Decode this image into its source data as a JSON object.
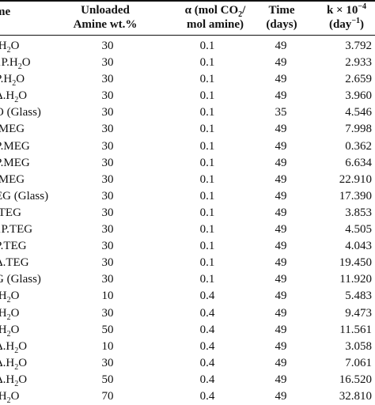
{
  "table": {
    "headers": {
      "name": "me",
      "amine_line1": "Unloaded",
      "amine_line2": "Amine wt.%",
      "alpha_line1": "α (mol CO",
      "alpha_sub": "2",
      "alpha_line1_end": "/",
      "alpha_line2": "mol amine)",
      "time_line1": "Time",
      "time_line2": "(days)",
      "k_line1": "k × 10",
      "k_sup": "−4",
      "k_line2_start": "(day",
      "k_line2_sup": "−1",
      "k_line2_end": ")"
    },
    "rows": [
      {
        "name": ".H",
        "sub": "2",
        "tail": "O",
        "amine": "30",
        "alpha": "0.1",
        "time": "49",
        "k": "3.792"
      },
      {
        "name": "1P.H",
        "sub": "2",
        "tail": "O",
        "amine": "30",
        "alpha": "0.1",
        "time": "49",
        "k": "2.933"
      },
      {
        "name": "P.H",
        "sub": "2",
        "tail": "O",
        "amine": "30",
        "alpha": "0.1",
        "time": "49",
        "k": "2.659"
      },
      {
        "name": "Δ.H",
        "sub": "2",
        "tail": "O",
        "amine": "30",
        "alpha": "0.1",
        "time": "49",
        "k": "3.960"
      },
      {
        "name": "O (Glass)",
        "sub": "",
        "tail": "",
        "amine": "30",
        "alpha": "0.1",
        "time": "35",
        "k": "4.546"
      },
      {
        "name": ".MEG",
        "sub": "",
        "tail": "",
        "amine": "30",
        "alpha": "0.1",
        "time": "49",
        "k": "7.998"
      },
      {
        "name": "P.MEG",
        "sub": "",
        "tail": "",
        "amine": "30",
        "alpha": "0.1",
        "time": "49",
        "k": "0.362"
      },
      {
        "name": "P.MEG",
        "sub": "",
        "tail": "",
        "amine": "30",
        "alpha": "0.1",
        "time": "49",
        "k": "6.634"
      },
      {
        "name": ".MEG",
        "sub": "",
        "tail": "",
        "amine": "30",
        "alpha": "0.1",
        "time": "49",
        "k": "22.910"
      },
      {
        "name": "EG (Glass)",
        "sub": "",
        "tail": "",
        "amine": "30",
        "alpha": "0.1",
        "time": "49",
        "k": "17.390"
      },
      {
        "name": ".TEG",
        "sub": "",
        "tail": "",
        "amine": "30",
        "alpha": "0.1",
        "time": "49",
        "k": "3.853"
      },
      {
        "name": "1P.TEG",
        "sub": "",
        "tail": "",
        "amine": "30",
        "alpha": "0.1",
        "time": "49",
        "k": "4.505"
      },
      {
        "name": "P.TEG",
        "sub": "",
        "tail": "",
        "amine": "30",
        "alpha": "0.1",
        "time": "49",
        "k": "4.043"
      },
      {
        "name": "Δ.TEG",
        "sub": "",
        "tail": "",
        "amine": "30",
        "alpha": "0.1",
        "time": "49",
        "k": "19.450"
      },
      {
        "name": "G (Glass)",
        "sub": "",
        "tail": "",
        "amine": "30",
        "alpha": "0.1",
        "time": "49",
        "k": "11.920"
      },
      {
        "name": ".H",
        "sub": "2",
        "tail": "O",
        "amine": "10",
        "alpha": "0.4",
        "time": "49",
        "k": "5.483"
      },
      {
        "name": ".H",
        "sub": "2",
        "tail": "O",
        "amine": "30",
        "alpha": "0.4",
        "time": "49",
        "k": "9.473"
      },
      {
        "name": ".H",
        "sub": "2",
        "tail": "O",
        "amine": "50",
        "alpha": "0.4",
        "time": "49",
        "k": "11.561"
      },
      {
        "name": "Δ.H",
        "sub": "2",
        "tail": "O",
        "amine": "10",
        "alpha": "0.4",
        "time": "49",
        "k": "3.058"
      },
      {
        "name": "Δ.H",
        "sub": "2",
        "tail": "O",
        "amine": "30",
        "alpha": "0.4",
        "time": "49",
        "k": "7.061"
      },
      {
        "name": "Δ.H",
        "sub": "2",
        "tail": "O",
        "amine": "50",
        "alpha": "0.4",
        "time": "49",
        "k": "16.520"
      },
      {
        "name": ".H",
        "sub": "2",
        "tail": "O",
        "amine": "70",
        "alpha": "0.4",
        "time": "49",
        "k": "32.810"
      }
    ]
  }
}
